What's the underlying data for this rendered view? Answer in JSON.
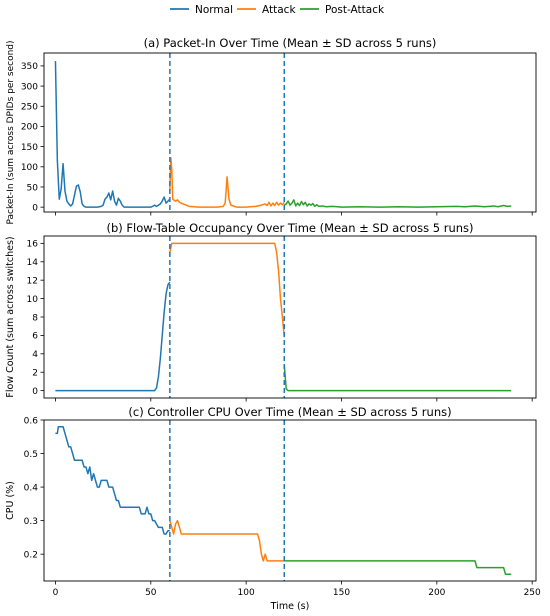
{
  "legend": [
    {
      "label": "Normal",
      "color": "#1f77b4"
    },
    {
      "label": "Attack",
      "color": "#ff7f0e"
    },
    {
      "label": "Post-Attack",
      "color": "#2ca02c"
    }
  ],
  "colors": {
    "normal": "#1f77b4",
    "attack": "#ff7f0e",
    "post": "#2ca02c",
    "divider": "#1f77b4"
  },
  "xlabel": "Time (s)",
  "chart_data": [
    {
      "type": "line",
      "title": "(a) Packet-In Over Time (Mean ± SD across 5 runs)",
      "ylabel": "Packet-In (sum across DPIDs per second)",
      "xlim": [
        -6,
        252
      ],
      "ylim": [
        -12,
        382
      ],
      "xticks": [
        0,
        50,
        100,
        150,
        200,
        250
      ],
      "yticks": [
        0,
        50,
        100,
        150,
        200,
        250,
        300,
        350
      ],
      "show_xtick_labels": false,
      "phase_boundaries": [
        60,
        120
      ],
      "series": [
        {
          "name": "Normal",
          "points": [
            [
              0,
              362
            ],
            [
              1,
              115
            ],
            [
              2,
              20
            ],
            [
              3,
              45
            ],
            [
              4,
              108
            ],
            [
              5,
              40
            ],
            [
              6,
              15
            ],
            [
              7,
              8
            ],
            [
              8,
              3
            ],
            [
              9,
              8
            ],
            [
              10,
              30
            ],
            [
              11,
              52
            ],
            [
              12,
              55
            ],
            [
              13,
              38
            ],
            [
              14,
              8
            ],
            [
              15,
              2
            ],
            [
              16,
              0
            ],
            [
              18,
              0
            ],
            [
              20,
              0
            ],
            [
              22,
              0
            ],
            [
              24,
              2
            ],
            [
              25,
              5
            ],
            [
              26,
              20
            ],
            [
              27,
              25
            ],
            [
              28,
              35
            ],
            [
              29,
              18
            ],
            [
              30,
              40
            ],
            [
              31,
              15
            ],
            [
              32,
              5
            ],
            [
              33,
              22
            ],
            [
              34,
              15
            ],
            [
              35,
              5
            ],
            [
              36,
              0
            ],
            [
              40,
              0
            ],
            [
              45,
              0
            ],
            [
              50,
              0
            ],
            [
              51,
              2
            ],
            [
              52,
              5
            ],
            [
              53,
              2
            ],
            [
              55,
              8
            ],
            [
              56,
              15
            ],
            [
              57,
              25
            ],
            [
              58,
              10
            ],
            [
              59,
              15
            ],
            [
              60,
              20
            ]
          ]
        },
        {
          "name": "Attack",
          "points": [
            [
              60,
              40
            ],
            [
              60.5,
              122
            ],
            [
              61,
              95
            ],
            [
              61.5,
              20
            ],
            [
              62,
              18
            ],
            [
              63,
              15
            ],
            [
              64,
              18
            ],
            [
              65,
              12
            ],
            [
              67,
              8
            ],
            [
              70,
              2
            ],
            [
              75,
              0
            ],
            [
              80,
              0
            ],
            [
              85,
              0
            ],
            [
              88,
              2
            ],
            [
              89,
              10
            ],
            [
              90,
              75
            ],
            [
              91,
              20
            ],
            [
              92,
              5
            ],
            [
              95,
              0
            ],
            [
              100,
              0
            ],
            [
              105,
              2
            ],
            [
              108,
              5
            ],
            [
              110,
              8
            ],
            [
              111,
              4
            ],
            [
              112,
              12
            ],
            [
              113,
              3
            ],
            [
              114,
              10
            ],
            [
              115,
              4
            ],
            [
              116,
              12
            ],
            [
              117,
              5
            ],
            [
              118,
              10
            ],
            [
              119,
              6
            ],
            [
              120,
              12
            ]
          ]
        },
        {
          "name": "Post-Attack",
          "points": [
            [
              120,
              5
            ],
            [
              121,
              8
            ],
            [
              122,
              15
            ],
            [
              123,
              5
            ],
            [
              124,
              10
            ],
            [
              125,
              18
            ],
            [
              126,
              3
            ],
            [
              127,
              10
            ],
            [
              128,
              4
            ],
            [
              129,
              14
            ],
            [
              130,
              6
            ],
            [
              131,
              12
            ],
            [
              132,
              3
            ],
            [
              133,
              8
            ],
            [
              134,
              5
            ],
            [
              135,
              9
            ],
            [
              136,
              2
            ],
            [
              137,
              6
            ],
            [
              138,
              2
            ],
            [
              140,
              3
            ],
            [
              142,
              1
            ],
            [
              145,
              2
            ],
            [
              148,
              1
            ],
            [
              150,
              0
            ],
            [
              160,
              1
            ],
            [
              170,
              0
            ],
            [
              180,
              1
            ],
            [
              190,
              0
            ],
            [
              200,
              1
            ],
            [
              210,
              2
            ],
            [
              215,
              1
            ],
            [
              220,
              3
            ],
            [
              225,
              1
            ],
            [
              230,
              3
            ],
            [
              232,
              1
            ],
            [
              235,
              4
            ],
            [
              237,
              2
            ],
            [
              239,
              3
            ]
          ]
        }
      ]
    },
    {
      "type": "line",
      "title": "(b) Flow-Table Occupancy Over Time (Mean ± SD across 5 runs)",
      "ylabel": "Flow Count (sum across switches)",
      "xlim": [
        -6,
        252
      ],
      "ylim": [
        -0.8,
        16.8
      ],
      "xticks": [
        0,
        50,
        100,
        150,
        200,
        250
      ],
      "yticks": [
        0,
        2,
        4,
        6,
        8,
        10,
        12,
        14,
        16
      ],
      "show_xtick_labels": false,
      "phase_boundaries": [
        60,
        120
      ],
      "series": [
        {
          "name": "Normal",
          "points": [
            [
              0,
              0
            ],
            [
              10,
              0
            ],
            [
              20,
              0
            ],
            [
              30,
              0
            ],
            [
              40,
              0
            ],
            [
              52,
              0
            ],
            [
              53,
              0.3
            ],
            [
              54,
              1.5
            ],
            [
              55,
              3.5
            ],
            [
              56,
              6
            ],
            [
              57,
              8.5
            ],
            [
              58,
              10.5
            ],
            [
              59,
              11.5
            ],
            [
              60,
              11.8
            ]
          ]
        },
        {
          "name": "Attack",
          "points": [
            [
              60,
              15
            ],
            [
              61,
              16
            ],
            [
              70,
              16
            ],
            [
              80,
              16
            ],
            [
              90,
              16
            ],
            [
              100,
              16
            ],
            [
              110,
              16
            ],
            [
              115,
              16
            ],
            [
              116,
              15
            ],
            [
              117,
              13
            ],
            [
              118,
              10
            ],
            [
              119,
              8
            ],
            [
              120,
              5.8
            ]
          ]
        },
        {
          "name": "Post-Attack",
          "points": [
            [
              120,
              2.8
            ],
            [
              121,
              0.2
            ],
            [
              122,
              0
            ],
            [
              130,
              0
            ],
            [
              150,
              0
            ],
            [
              170,
              0
            ],
            [
              200,
              0
            ],
            [
              220,
              0
            ],
            [
              239,
              0
            ]
          ]
        }
      ]
    },
    {
      "type": "line",
      "title": "(c) Controller CPU Over Time (Mean ± SD across 5 runs)",
      "ylabel": "CPU (%)",
      "xlabel": "Time (s)",
      "xlim": [
        -6,
        252
      ],
      "ylim": [
        0.12,
        0.6
      ],
      "xticks": [
        0,
        50,
        100,
        150,
        200,
        250
      ],
      "yticks": [
        0.2,
        0.3,
        0.4,
        0.5,
        0.6
      ],
      "show_xtick_labels": true,
      "phase_boundaries": [
        60,
        120
      ],
      "series": [
        {
          "name": "Normal",
          "points": [
            [
              0,
              0.56
            ],
            [
              1,
              0.56
            ],
            [
              1.5,
              0.58
            ],
            [
              3,
              0.58
            ],
            [
              4,
              0.58
            ],
            [
              6,
              0.54
            ],
            [
              7,
              0.52
            ],
            [
              8,
              0.52
            ],
            [
              9,
              0.5
            ],
            [
              10,
              0.48
            ],
            [
              11,
              0.48
            ],
            [
              12,
              0.48
            ],
            [
              13,
              0.48
            ],
            [
              14,
              0.48
            ],
            [
              15,
              0.46
            ],
            [
              16,
              0.46
            ],
            [
              17,
              0.44
            ],
            [
              18,
              0.46
            ],
            [
              19,
              0.42
            ],
            [
              20,
              0.44
            ],
            [
              21,
              0.42
            ],
            [
              22,
              0.4
            ],
            [
              23,
              0.4
            ],
            [
              24,
              0.42
            ],
            [
              25,
              0.42
            ],
            [
              26,
              0.42
            ],
            [
              27,
              0.42
            ],
            [
              28,
              0.4
            ],
            [
              29,
              0.4
            ],
            [
              30,
              0.4
            ],
            [
              31,
              0.38
            ],
            [
              32,
              0.36
            ],
            [
              33,
              0.36
            ],
            [
              34,
              0.34
            ],
            [
              36,
              0.34
            ],
            [
              40,
              0.34
            ],
            [
              44,
              0.34
            ],
            [
              45,
              0.32
            ],
            [
              46,
              0.32
            ],
            [
              47,
              0.32
            ],
            [
              48,
              0.34
            ],
            [
              49,
              0.32
            ],
            [
              50,
              0.32
            ],
            [
              51,
              0.3
            ],
            [
              52,
              0.3
            ],
            [
              53,
              0.29
            ],
            [
              54,
              0.28
            ],
            [
              56,
              0.28
            ],
            [
              57,
              0.26
            ],
            [
              58,
              0.26
            ],
            [
              59,
              0.27
            ],
            [
              60,
              0.27
            ]
          ]
        },
        {
          "name": "Attack",
          "points": [
            [
              60,
              0.3
            ],
            [
              61,
              0.28
            ],
            [
              62,
              0.26
            ],
            [
              63,
              0.29
            ],
            [
              64,
              0.3
            ],
            [
              65,
              0.28
            ],
            [
              66,
              0.26
            ],
            [
              68,
              0.26
            ],
            [
              75,
              0.26
            ],
            [
              85,
              0.26
            ],
            [
              95,
              0.26
            ],
            [
              100,
              0.26
            ],
            [
              105,
              0.26
            ],
            [
              106,
              0.26
            ],
            [
              107,
              0.24
            ],
            [
              108,
              0.2
            ],
            [
              109,
              0.18
            ],
            [
              110,
              0.2
            ],
            [
              111,
              0.18
            ],
            [
              113,
              0.18
            ],
            [
              116,
              0.18
            ],
            [
              120,
              0.18
            ]
          ]
        },
        {
          "name": "Post-Attack",
          "points": [
            [
              120,
              0.18
            ],
            [
              130,
              0.18
            ],
            [
              150,
              0.18
            ],
            [
              170,
              0.18
            ],
            [
              190,
              0.18
            ],
            [
              210,
              0.18
            ],
            [
              220,
              0.18
            ],
            [
              221,
              0.16
            ],
            [
              225,
              0.16
            ],
            [
              229,
              0.16
            ],
            [
              230,
              0.16
            ],
            [
              231,
              0.16
            ],
            [
              232,
              0.16
            ],
            [
              233,
              0.16
            ],
            [
              234,
              0.16
            ],
            [
              235,
              0.16
            ],
            [
              236,
              0.14
            ],
            [
              239,
              0.14
            ]
          ]
        }
      ]
    }
  ]
}
